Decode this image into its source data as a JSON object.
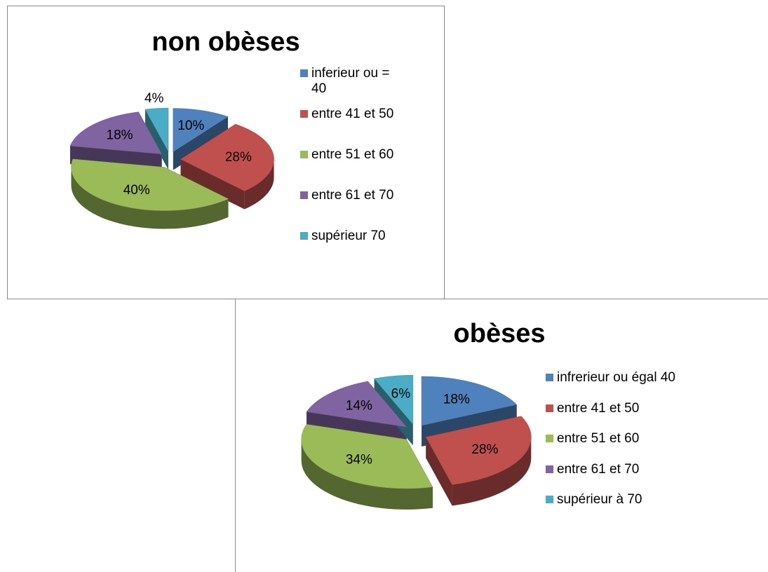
{
  "chart_data": [
    {
      "type": "pie",
      "title": "non obèses",
      "categories": [
        "inferieur ou = 40",
        "entre 41 et 50",
        "entre 51 et 60",
        "entre 61 et 70",
        "supérieur 70"
      ],
      "values": [
        10,
        28,
        40,
        18,
        4
      ],
      "value_labels": [
        "10%",
        "28%",
        "40%",
        "18%",
        "4%"
      ],
      "colors": [
        "#4f81bd",
        "#c0504d",
        "#9bbb59",
        "#8064a2",
        "#4bacc6"
      ],
      "legend": "right"
    },
    {
      "type": "pie",
      "title": "obèses",
      "categories": [
        "infrerieur ou égal 40",
        "entre 41 et 50",
        "entre 51 et 60",
        "entre 61 et 70",
        "supérieur  à 70"
      ],
      "values": [
        18,
        28,
        34,
        14,
        6
      ],
      "value_labels": [
        "18%",
        "28%",
        "34%",
        "14%",
        "6%"
      ],
      "colors": [
        "#4f81bd",
        "#c0504d",
        "#9bbb59",
        "#8064a2",
        "#4bacc6"
      ],
      "legend": "right"
    }
  ]
}
